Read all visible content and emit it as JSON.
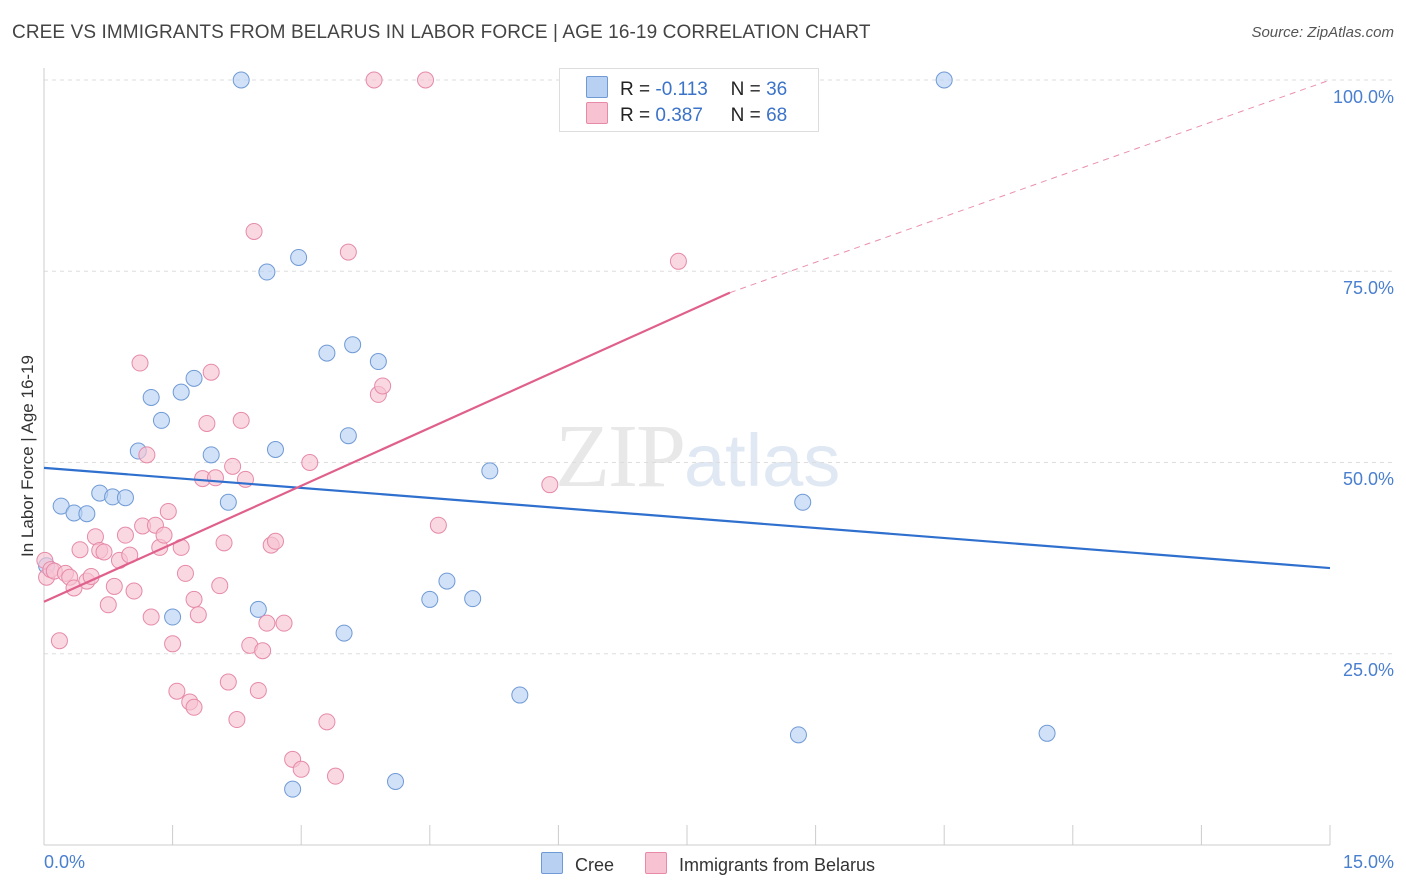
{
  "header": {
    "title": "CREE VS IMMIGRANTS FROM BELARUS IN LABOR FORCE | AGE 16-19 CORRELATION CHART",
    "source": "Source: ZipAtlas.com"
  },
  "watermark": {
    "zip": "ZIP",
    "atlas": "atlas"
  },
  "legend": {
    "rows": [
      {
        "r_label": "R =",
        "r_value": "-0.113",
        "n_label": "N =",
        "n_value": "36"
      },
      {
        "r_label": "R =",
        "r_value": "0.387",
        "n_label": "N =",
        "n_value": "68"
      }
    ]
  },
  "colors": {
    "cree_fill": "#b8d1f2",
    "cree_stroke": "#6f9ad6",
    "cree_line": "#2f6fce",
    "belarus_fill": "#f7c3d3",
    "belarus_stroke": "#e68aa8",
    "belarus_line": "#e0608c",
    "grid": "#dddddd",
    "tick_text": "#4a7fcf"
  },
  "chart_data": {
    "type": "scatter",
    "title": "CREE VS IMMIGRANTS FROM BELARUS IN LABOR FORCE | AGE 16-19 CORRELATION CHART",
    "xlabel": "",
    "ylabel": "In Labor Force | Age 16-19",
    "xlim": [
      0,
      15
    ],
    "ylim": [
      0,
      100
    ],
    "x_tick_labels": [
      "0.0%",
      "15.0%"
    ],
    "y_ticks": [
      25,
      50,
      75,
      100
    ],
    "y_tick_labels": [
      "25.0%",
      "50.0%",
      "75.0%",
      "100.0%"
    ],
    "grid": true,
    "legend_position": "bottom",
    "series": [
      {
        "name": "Cree",
        "points": [
          [
            0.03,
            36.5
          ],
          [
            0.2,
            44.3
          ],
          [
            0.35,
            43.4
          ],
          [
            0.5,
            43.3
          ],
          [
            0.65,
            46.0
          ],
          [
            0.8,
            45.5
          ],
          [
            0.95,
            45.4
          ],
          [
            1.1,
            51.5
          ],
          [
            1.25,
            58.5
          ],
          [
            1.37,
            55.5
          ],
          [
            1.6,
            59.2
          ],
          [
            1.75,
            61.0
          ],
          [
            1.95,
            51.0
          ],
          [
            2.15,
            44.8
          ],
          [
            2.3,
            100.0
          ],
          [
            2.5,
            30.8
          ],
          [
            2.6,
            74.9
          ],
          [
            2.7,
            51.7
          ],
          [
            2.9,
            7.3
          ],
          [
            2.97,
            76.8
          ],
          [
            3.3,
            64.3
          ],
          [
            3.55,
            53.5
          ],
          [
            3.6,
            65.4
          ],
          [
            3.5,
            27.7
          ],
          [
            3.9,
            63.2
          ],
          [
            4.1,
            8.3
          ],
          [
            4.5,
            32.1
          ],
          [
            4.7,
            34.5
          ],
          [
            5.0,
            32.2
          ],
          [
            5.2,
            48.9
          ],
          [
            5.55,
            19.6
          ],
          [
            1.5,
            29.8
          ],
          [
            8.8,
            14.4
          ],
          [
            8.85,
            44.8
          ],
          [
            10.5,
            100.0
          ],
          [
            11.7,
            14.6
          ]
        ]
      },
      {
        "name": "Immigrants from Belarus",
        "points": [
          [
            0.01,
            37.2
          ],
          [
            0.03,
            35.0
          ],
          [
            0.08,
            36.0
          ],
          [
            0.12,
            35.8
          ],
          [
            0.18,
            26.7
          ],
          [
            0.25,
            35.5
          ],
          [
            0.3,
            35.0
          ],
          [
            0.35,
            33.6
          ],
          [
            0.42,
            38.6
          ],
          [
            0.5,
            34.5
          ],
          [
            0.55,
            35.1
          ],
          [
            0.6,
            40.3
          ],
          [
            0.65,
            38.5
          ],
          [
            0.7,
            38.3
          ],
          [
            0.75,
            31.4
          ],
          [
            0.82,
            33.8
          ],
          [
            0.88,
            37.2
          ],
          [
            0.95,
            40.5
          ],
          [
            1.0,
            37.9
          ],
          [
            1.05,
            33.2
          ],
          [
            1.12,
            63.0
          ],
          [
            1.15,
            41.7
          ],
          [
            1.2,
            51.0
          ],
          [
            1.25,
            29.8
          ],
          [
            1.3,
            41.8
          ],
          [
            1.35,
            38.9
          ],
          [
            1.4,
            40.5
          ],
          [
            1.45,
            43.6
          ],
          [
            1.5,
            26.3
          ],
          [
            1.55,
            20.1
          ],
          [
            1.6,
            38.9
          ],
          [
            1.65,
            35.5
          ],
          [
            1.7,
            18.7
          ],
          [
            1.75,
            32.1
          ],
          [
            1.8,
            30.1
          ],
          [
            1.85,
            47.9
          ],
          [
            1.9,
            55.1
          ],
          [
            1.95,
            61.8
          ],
          [
            2.0,
            48.0
          ],
          [
            2.05,
            33.9
          ],
          [
            2.1,
            39.5
          ],
          [
            2.15,
            21.3
          ],
          [
            2.2,
            49.5
          ],
          [
            2.25,
            16.4
          ],
          [
            2.3,
            55.5
          ],
          [
            2.35,
            47.8
          ],
          [
            2.4,
            26.1
          ],
          [
            2.45,
            80.2
          ],
          [
            2.5,
            20.2
          ],
          [
            2.55,
            25.4
          ],
          [
            2.6,
            29.0
          ],
          [
            2.65,
            39.2
          ],
          [
            2.7,
            39.7
          ],
          [
            2.8,
            29.0
          ],
          [
            2.9,
            11.2
          ],
          [
            3.0,
            9.9
          ],
          [
            3.1,
            50.0
          ],
          [
            3.3,
            16.1
          ],
          [
            3.4,
            9.0
          ],
          [
            3.55,
            77.5
          ],
          [
            3.85,
            100.0
          ],
          [
            3.9,
            58.9
          ],
          [
            3.95,
            60.0
          ],
          [
            4.45,
            100.0
          ],
          [
            4.6,
            41.8
          ],
          [
            5.9,
            47.1
          ],
          [
            1.75,
            18.0
          ],
          [
            7.4,
            76.3
          ]
        ]
      }
    ],
    "trend_lines": [
      {
        "series": "Cree",
        "x": [
          0,
          15
        ],
        "y": [
          49.3,
          36.2
        ],
        "style": "solid"
      },
      {
        "series": "Immigrants from Belarus",
        "x": [
          0,
          8.0
        ],
        "y": [
          31.8,
          72.2
        ],
        "style": "solid"
      },
      {
        "series": "Immigrants from Belarus",
        "x": [
          8.0,
          15
        ],
        "y": [
          72.2,
          100.0
        ],
        "style": "dashed"
      }
    ]
  }
}
